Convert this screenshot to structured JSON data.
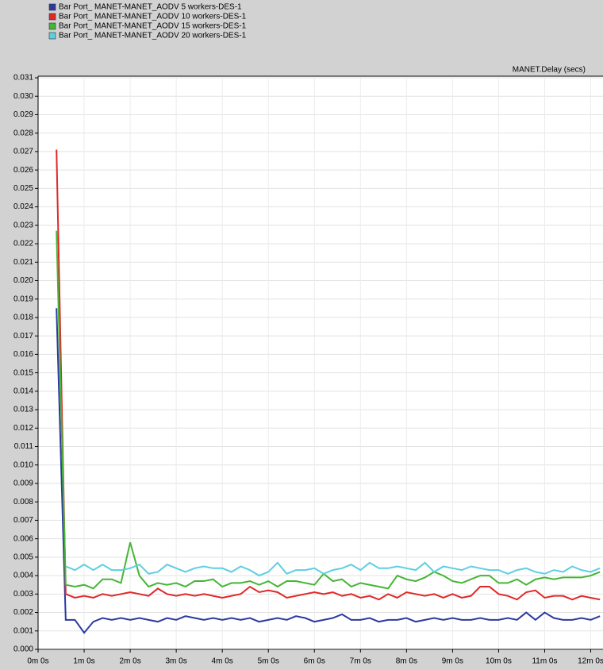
{
  "chart_data": {
    "type": "line",
    "title": "MANET.Delay (secs)",
    "x": [
      24,
      36,
      48,
      60,
      72,
      84,
      96,
      108,
      120,
      132,
      144,
      156,
      168,
      180,
      192,
      204,
      216,
      228,
      240,
      252,
      264,
      276,
      288,
      300,
      312,
      324,
      336,
      348,
      360,
      372,
      384,
      396,
      408,
      420,
      432,
      444,
      456,
      468,
      480,
      492,
      504,
      516,
      528,
      540,
      552,
      564,
      576,
      588,
      600,
      612,
      624,
      636,
      648,
      660,
      672,
      684,
      696,
      708,
      720,
      732
    ],
    "series": [
      {
        "name": "Bar Port_ MANET-MANET_AODV 5 workers-DES-1",
        "color": "#2b3aa0",
        "values": [
          0.0185,
          0.0016,
          0.0016,
          0.0009,
          0.0015,
          0.0017,
          0.0016,
          0.0017,
          0.0016,
          0.0017,
          0.0016,
          0.0015,
          0.0017,
          0.0016,
          0.0018,
          0.0017,
          0.0016,
          0.0017,
          0.0016,
          0.0017,
          0.0016,
          0.0017,
          0.0015,
          0.0016,
          0.0017,
          0.0016,
          0.0018,
          0.0017,
          0.0015,
          0.0016,
          0.0017,
          0.0019,
          0.0016,
          0.0016,
          0.0017,
          0.0015,
          0.0016,
          0.0016,
          0.0017,
          0.0015,
          0.0016,
          0.0017,
          0.0016,
          0.0017,
          0.0016,
          0.0016,
          0.0017,
          0.0016,
          0.0016,
          0.0017,
          0.0016,
          0.002,
          0.0016,
          0.002,
          0.0017,
          0.0016,
          0.0016,
          0.0017,
          0.0016,
          0.0018
        ]
      },
      {
        "name": "Bar Port_ MANET-MANET_AODV 10 workers-DES-1",
        "color": "#e02828",
        "values": [
          0.0271,
          0.003,
          0.0028,
          0.0029,
          0.0028,
          0.003,
          0.0029,
          0.003,
          0.0031,
          0.003,
          0.0029,
          0.0033,
          0.003,
          0.0029,
          0.003,
          0.0029,
          0.003,
          0.0029,
          0.0028,
          0.0029,
          0.003,
          0.0034,
          0.0031,
          0.0032,
          0.0031,
          0.0028,
          0.0029,
          0.003,
          0.0031,
          0.003,
          0.0031,
          0.0029,
          0.003,
          0.0028,
          0.0029,
          0.0027,
          0.003,
          0.0028,
          0.0031,
          0.003,
          0.0029,
          0.003,
          0.0028,
          0.003,
          0.0028,
          0.0029,
          0.0034,
          0.0034,
          0.003,
          0.0029,
          0.0027,
          0.0031,
          0.0032,
          0.0028,
          0.0029,
          0.0029,
          0.0027,
          0.0029,
          0.0028,
          0.0027
        ]
      },
      {
        "name": "Bar Port_ MANET-MANET_AODV 15 workers-DES-1",
        "color": "#44b634",
        "values": [
          0.0227,
          0.0035,
          0.0034,
          0.0035,
          0.0033,
          0.0038,
          0.0038,
          0.0036,
          0.0058,
          0.004,
          0.0034,
          0.0036,
          0.0035,
          0.0036,
          0.0034,
          0.0037,
          0.0037,
          0.0038,
          0.0034,
          0.0036,
          0.0036,
          0.0037,
          0.0035,
          0.0037,
          0.0034,
          0.0037,
          0.0037,
          0.0036,
          0.0035,
          0.0041,
          0.0037,
          0.0038,
          0.0034,
          0.0036,
          0.0035,
          0.0034,
          0.0033,
          0.004,
          0.0038,
          0.0037,
          0.0039,
          0.0042,
          0.004,
          0.0037,
          0.0036,
          0.0038,
          0.004,
          0.004,
          0.0036,
          0.0036,
          0.0038,
          0.0035,
          0.0038,
          0.0039,
          0.0038,
          0.0039,
          0.0039,
          0.0039,
          0.004,
          0.0042
        ]
      },
      {
        "name": "Bar Port_ MANET-MANET_AODV 20 workers-DES-1",
        "color": "#5ccfe0",
        "values": [
          null,
          0.0045,
          0.0043,
          0.0046,
          0.0043,
          0.0046,
          0.0043,
          0.0043,
          0.0044,
          0.0046,
          0.0041,
          0.0042,
          0.0046,
          0.0044,
          0.0042,
          0.0044,
          0.0045,
          0.0044,
          0.0044,
          0.0042,
          0.0045,
          0.0043,
          0.004,
          0.0042,
          0.0047,
          0.0041,
          0.0043,
          0.0043,
          0.0044,
          0.0041,
          0.0043,
          0.0044,
          0.0046,
          0.0043,
          0.0047,
          0.0044,
          0.0044,
          0.0045,
          0.0044,
          0.0043,
          0.0047,
          0.0042,
          0.0045,
          0.0044,
          0.0043,
          0.0045,
          0.0044,
          0.0043,
          0.0043,
          0.0041,
          0.0043,
          0.0044,
          0.0042,
          0.0041,
          0.0043,
          0.0042,
          0.0045,
          0.0043,
          0.0042,
          0.0044
        ]
      }
    ],
    "xlim": [
      0,
      736
    ],
    "xticks": [
      {
        "value": 0,
        "label": "0m 0s"
      },
      {
        "value": 60,
        "label": "1m 0s"
      },
      {
        "value": 120,
        "label": "2m 0s"
      },
      {
        "value": 180,
        "label": "3m 0s"
      },
      {
        "value": 240,
        "label": "4m 0s"
      },
      {
        "value": 300,
        "label": "5m 0s"
      },
      {
        "value": 360,
        "label": "6m 0s"
      },
      {
        "value": 420,
        "label": "7m 0s"
      },
      {
        "value": 480,
        "label": "8m 0s"
      },
      {
        "value": 540,
        "label": "9m 0s"
      },
      {
        "value": 600,
        "label": "10m 0s"
      },
      {
        "value": 660,
        "label": "11m 0s"
      },
      {
        "value": 720,
        "label": "12m 0s"
      }
    ],
    "ylim": [
      0,
      0.031
    ],
    "yticks": [
      {
        "value": 0,
        "label": "0.000"
      },
      {
        "value": 0.001,
        "label": "0.001"
      },
      {
        "value": 0.002,
        "label": "0.002"
      },
      {
        "value": 0.003,
        "label": "0.003"
      },
      {
        "value": 0.004,
        "label": "0.004"
      },
      {
        "value": 0.005,
        "label": "0.005"
      },
      {
        "value": 0.006,
        "label": "0.006"
      },
      {
        "value": 0.007,
        "label": "0.007"
      },
      {
        "value": 0.008,
        "label": "0.008"
      },
      {
        "value": 0.009,
        "label": "0.009"
      },
      {
        "value": 0.01,
        "label": "0.010"
      },
      {
        "value": 0.011,
        "label": "0.011"
      },
      {
        "value": 0.012,
        "label": "0.012"
      },
      {
        "value": 0.013,
        "label": "0.013"
      },
      {
        "value": 0.014,
        "label": "0.014"
      },
      {
        "value": 0.015,
        "label": "0.015"
      },
      {
        "value": 0.016,
        "label": "0.016"
      },
      {
        "value": 0.017,
        "label": "0.017"
      },
      {
        "value": 0.018,
        "label": "0.018"
      },
      {
        "value": 0.019,
        "label": "0.019"
      },
      {
        "value": 0.02,
        "label": "0.020"
      },
      {
        "value": 0.021,
        "label": "0.021"
      },
      {
        "value": 0.022,
        "label": "0.022"
      },
      {
        "value": 0.023,
        "label": "0.023"
      },
      {
        "value": 0.024,
        "label": "0.024"
      },
      {
        "value": 0.025,
        "label": "0.025"
      },
      {
        "value": 0.026,
        "label": "0.026"
      },
      {
        "value": 0.027,
        "label": "0.027"
      },
      {
        "value": 0.028,
        "label": "0.028"
      },
      {
        "value": 0.029,
        "label": "0.029"
      },
      {
        "value": 0.03,
        "label": "0.030"
      },
      {
        "value": 0.031,
        "label": "0.031"
      }
    ],
    "grid": true
  }
}
